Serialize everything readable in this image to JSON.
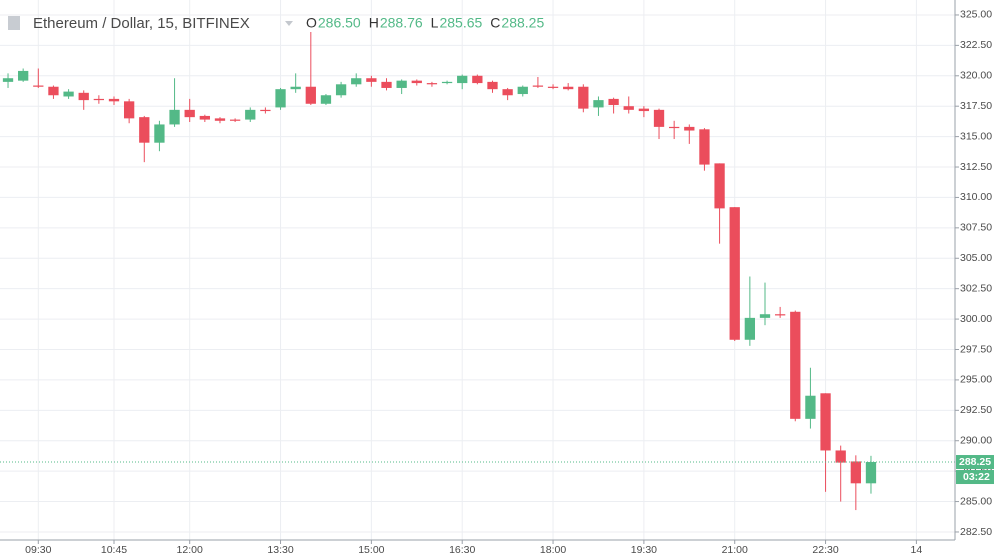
{
  "chart_data": {
    "type": "candlestick",
    "title": "Ethereum / Dollar, 15, BITFINEX",
    "legend": [
      {
        "key": "O",
        "value": "286.50"
      },
      {
        "key": "H",
        "value": "288.76"
      },
      {
        "key": "L",
        "value": "285.65"
      },
      {
        "key": "C",
        "value": "288.25"
      }
    ],
    "up_color": "#53b987",
    "down_color": "#eb4d5c",
    "open": [
      319.5,
      319.6,
      319.2,
      319.1,
      318.3,
      318.6,
      318.1,
      318.1,
      317.9,
      316.6,
      314.5,
      316.0,
      317.2,
      316.7,
      316.5,
      316.4,
      316.4,
      317.2,
      317.4,
      318.9,
      319.1,
      317.7,
      318.4,
      319.3,
      319.8,
      319.5,
      319.0,
      319.6,
      319.4,
      319.4,
      319.4,
      320.0,
      319.5,
      318.9,
      318.5,
      319.2,
      319.1,
      319.1,
      319.1,
      317.4,
      318.1,
      317.5,
      317.3,
      317.2,
      315.8,
      315.8,
      315.6,
      312.8,
      309.2,
      298.3,
      300.1,
      300.4,
      300.6,
      291.8,
      293.9,
      289.2,
      288.3,
      286.5
    ],
    "high": [
      320.2,
      320.6,
      320.6,
      319.2,
      318.9,
      318.8,
      318.4,
      318.3,
      318.1,
      316.7,
      316.3,
      319.8,
      318.1,
      316.8,
      316.6,
      316.5,
      317.4,
      317.4,
      319.0,
      320.2,
      323.6,
      318.5,
      319.5,
      320.2,
      320.0,
      319.8,
      319.7,
      319.7,
      319.5,
      319.6,
      320.1,
      320.1,
      319.6,
      319.0,
      319.2,
      319.9,
      319.3,
      319.4,
      319.3,
      318.3,
      318.2,
      318.3,
      317.5,
      317.3,
      316.3,
      316.0,
      315.7,
      312.8,
      309.2,
      303.5,
      303.0,
      301.0,
      300.7,
      296.0,
      293.9,
      289.6,
      288.8,
      288.76
    ],
    "low": [
      319.0,
      319.5,
      319.0,
      318.1,
      318.1,
      317.2,
      317.7,
      317.6,
      316.1,
      312.9,
      313.8,
      315.8,
      316.2,
      316.2,
      316.1,
      316.2,
      316.2,
      316.9,
      317.2,
      318.6,
      317.6,
      317.6,
      318.2,
      319.1,
      319.1,
      318.8,
      318.5,
      319.2,
      319.1,
      319.3,
      318.9,
      319.3,
      318.6,
      318.0,
      318.3,
      319.0,
      318.9,
      318.8,
      317.0,
      316.7,
      316.9,
      316.9,
      316.6,
      314.8,
      314.8,
      314.4,
      312.2,
      306.2,
      298.2,
      297.8,
      299.5,
      300.1,
      291.6,
      291.0,
      285.8,
      285.0,
      284.3,
      285.65
    ],
    "close": [
      319.8,
      320.4,
      319.1,
      318.4,
      318.7,
      318.0,
      318.0,
      317.9,
      316.5,
      314.5,
      316.0,
      317.2,
      316.6,
      316.4,
      316.3,
      316.3,
      317.2,
      317.1,
      318.9,
      319.1,
      317.7,
      318.4,
      319.3,
      319.8,
      319.5,
      319.0,
      319.6,
      319.4,
      319.3,
      319.5,
      320.0,
      319.4,
      318.9,
      318.4,
      319.1,
      319.1,
      319.0,
      318.9,
      317.3,
      318.0,
      317.6,
      317.2,
      317.1,
      315.8,
      315.7,
      315.5,
      312.7,
      309.1,
      298.3,
      300.1,
      300.4,
      300.3,
      291.8,
      293.7,
      289.2,
      288.2,
      286.5,
      288.25
    ],
    "xlim": [
      -0.53,
      62.55
    ],
    "xticks": [
      {
        "value": 2,
        "label": "09:30"
      },
      {
        "value": 7,
        "label": "10:45"
      },
      {
        "value": 12,
        "label": "12:00"
      },
      {
        "value": 18,
        "label": "13:30"
      },
      {
        "value": 24,
        "label": "15:00"
      },
      {
        "value": 30,
        "label": "16:30"
      },
      {
        "value": 36,
        "label": "18:00"
      },
      {
        "value": 42,
        "label": "19:30"
      },
      {
        "value": 48,
        "label": "21:00"
      },
      {
        "value": 54,
        "label": "22:30"
      },
      {
        "value": 60,
        "label": "14"
      }
    ],
    "ylim": [
      281.84,
      326.23
    ],
    "yticks": [
      {
        "value": 282.5,
        "label": "282.50"
      },
      {
        "value": 285,
        "label": "285.00"
      },
      {
        "value": 287.5,
        "label": "287.50"
      },
      {
        "value": 290,
        "label": "290.00"
      },
      {
        "value": 292.5,
        "label": "292.50"
      },
      {
        "value": 295,
        "label": "295.00"
      },
      {
        "value": 297.5,
        "label": "297.50"
      },
      {
        "value": 300,
        "label": "300.00"
      },
      {
        "value": 302.5,
        "label": "302.50"
      },
      {
        "value": 305,
        "label": "305.00"
      },
      {
        "value": 307.5,
        "label": "307.50"
      },
      {
        "value": 310,
        "label": "310.00"
      },
      {
        "value": 312.5,
        "label": "312.50"
      },
      {
        "value": 315,
        "label": "315.00"
      },
      {
        "value": 317.5,
        "label": "317.50"
      },
      {
        "value": 320,
        "label": "320.00"
      },
      {
        "value": 322.5,
        "label": "322.50"
      },
      {
        "value": 325,
        "label": "325.00"
      }
    ],
    "grid": true,
    "last_price": {
      "value": 288.25,
      "label": "288.25"
    },
    "countdown": "03:22"
  }
}
